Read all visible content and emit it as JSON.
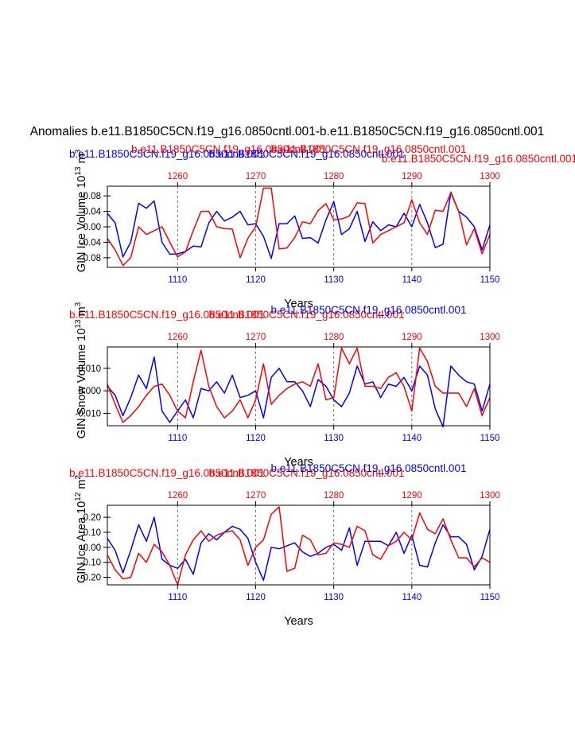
{
  "figure": {
    "title": "Anomalies b.e11.B1850C5CN.f19_g16.0850cntl.001-b.e11.B1850C5CN.f19_g16.0850cntl.001",
    "colors": {
      "case_a": "#0000ff",
      "case_b": "#ff0000",
      "axis": "#000000",
      "grid": "#555555"
    }
  },
  "chart_data": [
    {
      "type": "line",
      "ylabel": "GIN Ice Volume 10",
      "ylabel_exp": "13",
      "ylabel_unit": " m",
      "ylabel_unit_exp": "3",
      "xlabel": "Years",
      "ylim": [
        -0.105,
        0.105
      ],
      "yticks": [
        -0.08,
        -0.04,
        0.0,
        0.04,
        0.08
      ],
      "ytick_labels": [
        "-0.08",
        "-0.04",
        "0.00",
        "0.04",
        "0.08"
      ],
      "bottom_axis": {
        "range": [
          1101,
          1150
        ],
        "ticks": [
          1110,
          1120,
          1130,
          1140,
          1150
        ],
        "labels": [
          "1110",
          "1120",
          "1130",
          "1140",
          "1150"
        ]
      },
      "top_axis": {
        "range": [
          1251,
          1300
        ],
        "ticks": [
          1260,
          1270,
          1280,
          1290,
          1300
        ],
        "labels": [
          "1260",
          "1270",
          "1280",
          "1290",
          "1300"
        ]
      },
      "top_titles": [
        {
          "text": "b.e11.B1850C5CN.f19_g16.0850cntl.001",
          "color": "#0000ff",
          "anchor": "left",
          "offset": 0
        },
        {
          "text": "b.e11.B1850C5CN.f19_g16.0850cntl.001",
          "color": "#ff0000",
          "anchor": "left",
          "offset": 1
        },
        {
          "text": "b.e11.B1850C5CN.f19_g16.0850cntl.001",
          "color": "#0000ff",
          "anchor": "center",
          "offset": 0
        },
        {
          "text": "b.e11.B1850C5CN.f19_g16.0850cntl.001",
          "color": "#ff0000",
          "anchor": "center",
          "offset": 1
        },
        {
          "text": "b.e11.B1850C5CN.f19_g16.0850cntl.001",
          "color": "#ff0000",
          "anchor": "right",
          "offset": 0
        }
      ],
      "series": [
        {
          "name": "b.e11.B1850C5CN.f19_g16.0850cntl.001",
          "color": "#0000ff",
          "x_start": 1101,
          "values": [
            0.035,
            0.01,
            -0.078,
            -0.04,
            0.061,
            0.048,
            0.067,
            -0.04,
            -0.071,
            -0.07,
            -0.064,
            -0.05,
            -0.052,
            0.01,
            0.04,
            0.015,
            0.025,
            0.04,
            0.005,
            0.008,
            -0.025,
            -0.082,
            0.008,
            0.008,
            0.028,
            -0.03,
            -0.028,
            -0.042,
            0.018,
            0.065,
            -0.02,
            -0.005,
            0.04,
            -0.038,
            0.013,
            -0.01,
            0.005,
            0.0,
            0.035,
            0.0,
            0.058,
            0.01,
            -0.054,
            -0.045,
            0.09,
            0.04,
            0.025,
            0.0,
            -0.06,
            0.005
          ]
        },
        {
          "name": "b.e11.B1850C5CN.f19_g16.0850cntl.001",
          "color": "#ff0000",
          "x_start": 1251,
          "values": [
            -0.03,
            -0.06,
            -0.1,
            -0.08,
            0.0,
            -0.02,
            -0.01,
            0.0,
            -0.04,
            -0.078,
            -0.065,
            -0.01,
            0.04,
            0.04,
            0.0,
            -0.005,
            -0.006,
            -0.08,
            -0.03,
            0.0,
            0.1,
            0.1,
            -0.057,
            -0.055,
            -0.028,
            0.013,
            0.008,
            0.042,
            0.06,
            0.018,
            0.02,
            0.028,
            0.062,
            0.06,
            -0.042,
            -0.02,
            -0.01,
            0.0,
            0.01,
            0.07,
            0.01,
            -0.02,
            0.043,
            0.04,
            0.088,
            0.04,
            -0.047,
            -0.005,
            -0.07,
            -0.02
          ]
        }
      ]
    },
    {
      "type": "line",
      "ylabel": "GIN Snow Volume 10",
      "ylabel_exp": "13",
      "ylabel_unit": " m",
      "ylabel_unit_exp": "3",
      "xlabel": "Years",
      "ylim": [
        -0.0155,
        0.0195
      ],
      "yticks": [
        -0.01,
        0.0,
        0.01
      ],
      "ytick_labels": [
        "-0.010",
        "0.000",
        "0.010"
      ],
      "bottom_axis": {
        "range": [
          1101,
          1150
        ],
        "ticks": [
          1110,
          1120,
          1130,
          1140,
          1150
        ],
        "labels": [
          "1110",
          "1120",
          "1130",
          "1140",
          "1150"
        ]
      },
      "top_axis": {
        "range": [
          1251,
          1300
        ],
        "ticks": [
          1260,
          1270,
          1280,
          1290,
          1300
        ],
        "labels": [
          "1260",
          "1270",
          "1280",
          "1290",
          "1300"
        ]
      },
      "top_titles": [
        {
          "text": "b.e11.B1850C5CN.f19_g16.0850cntl.001",
          "color": "#ff0000",
          "anchor": "left",
          "offset": 0
        },
        {
          "text": "b.e11.B1850C5CN.f19_g16.0850cntl.001",
          "color": "#ff0000",
          "anchor": "center",
          "offset": 0
        },
        {
          "text": "b.e11.B1850C5CN.f19_g16.0850cntl.001",
          "color": "#0000ff",
          "anchor": "center",
          "offset": 1
        }
      ],
      "series": [
        {
          "name": "b.e11.B1850C5CN.f19_g16.0850cntl.001",
          "color": "#0000ff",
          "x_start": 1101,
          "values": [
            0.002,
            -0.002,
            -0.011,
            -0.003,
            0.007,
            0.001,
            0.015,
            -0.009,
            -0.014,
            -0.009,
            -0.004,
            -0.012,
            0.001,
            0.0,
            0.004,
            -0.001,
            0.007,
            -0.003,
            -0.002,
            0.0,
            -0.012,
            0.006,
            0.01,
            0.004,
            0.004,
            0.0,
            -0.007,
            0.005,
            0.002,
            -0.004,
            -0.007,
            -0.001,
            0.011,
            0.003,
            0.004,
            -0.003,
            0.003,
            0.002,
            0.006,
            0.0,
            0.011,
            0.007,
            -0.008,
            -0.016,
            0.011,
            0.007,
            0.004,
            0.003,
            -0.009,
            0.003
          ]
        },
        {
          "name": "b.e11.B1850C5CN.f19_g16.0850cntl.001",
          "color": "#ff0000",
          "x_start": 1251,
          "values": [
            0.003,
            -0.006,
            -0.014,
            -0.011,
            -0.007,
            -0.002,
            0.002,
            0.003,
            -0.002,
            -0.009,
            -0.012,
            0.004,
            0.018,
            0.002,
            -0.007,
            -0.012,
            -0.009,
            -0.004,
            -0.012,
            -0.004,
            0.012,
            -0.006,
            -0.002,
            0.001,
            0.003,
            0.004,
            0.002,
            0.012,
            -0.004,
            -0.003,
            0.019,
            0.012,
            0.019,
            0.002,
            0.002,
            0.001,
            0.006,
            0.008,
            0.002,
            -0.009,
            0.019,
            0.013,
            0.002,
            -0.001,
            -0.001,
            -0.001,
            -0.007,
            0.001,
            -0.011,
            -0.003
          ]
        }
      ]
    },
    {
      "type": "line",
      "ylabel": "GIN Ice Area 10",
      "ylabel_exp": "12",
      "ylabel_unit": " m",
      "ylabel_unit_exp": "2",
      "xlabel": "Years",
      "ylim": [
        -0.25,
        0.28
      ],
      "yticks": [
        -0.2,
        -0.1,
        0.0,
        0.1,
        0.2
      ],
      "ytick_labels": [
        "-0.20",
        "-0.10",
        "0.00",
        "0.10",
        "0.20"
      ],
      "bottom_axis": {
        "range": [
          1101,
          1150
        ],
        "ticks": [
          1110,
          1120,
          1130,
          1140,
          1150
        ],
        "labels": [
          "1110",
          "1120",
          "1130",
          "1140",
          "1150"
        ]
      },
      "top_axis": {
        "range": [
          1251,
          1300
        ],
        "ticks": [
          1260,
          1270,
          1280,
          1290,
          1300
        ],
        "labels": [
          "1260",
          "1270",
          "1280",
          "1290",
          "1300"
        ]
      },
      "top_titles": [
        {
          "text": "b.e11.B1850C5CN.f19_g16.0850cntl.001",
          "color": "#ff0000",
          "anchor": "left",
          "offset": 0
        },
        {
          "text": "b.e11.B1850C5CN.f19_g16.0850cntl.001",
          "color": "#ff0000",
          "anchor": "center",
          "offset": 0
        },
        {
          "text": "b.e11.B1850C5CN.f19_g16.0850cntl.001",
          "color": "#0000ff",
          "anchor": "center",
          "offset": 1
        }
      ],
      "series": [
        {
          "name": "b.e11.B1850C5CN.f19_g16.0850cntl.001",
          "color": "#0000ff",
          "x_start": 1101,
          "values": [
            0.06,
            -0.02,
            -0.17,
            -0.02,
            0.15,
            0.04,
            0.2,
            -0.08,
            -0.12,
            -0.14,
            -0.08,
            -0.18,
            0.03,
            0.09,
            0.05,
            0.1,
            0.14,
            0.12,
            0.06,
            -0.1,
            -0.22,
            0.0,
            -0.01,
            0.01,
            0.03,
            -0.03,
            -0.06,
            -0.04,
            0.0,
            0.02,
            -0.02,
            0.13,
            -0.12,
            0.04,
            0.04,
            0.04,
            0.01,
            0.1,
            -0.04,
            0.08,
            -0.12,
            -0.13,
            0.03,
            0.15,
            0.07,
            0.07,
            0.02,
            -0.15,
            -0.06,
            0.12
          ]
        },
        {
          "name": "b.e11.B1850C5CN.f19_g16.0850cntl.001",
          "color": "#ff0000",
          "x_start": 1251,
          "values": [
            -0.05,
            -0.15,
            -0.21,
            -0.2,
            -0.04,
            -0.1,
            0.02,
            -0.03,
            -0.12,
            -0.25,
            -0.05,
            0.05,
            0.11,
            0.04,
            0.08,
            0.1,
            0.11,
            0.05,
            -0.12,
            0.0,
            0.05,
            0.22,
            0.27,
            -0.16,
            -0.14,
            0.08,
            0.05,
            -0.05,
            -0.04,
            0.03,
            0.02,
            0.0,
            0.14,
            0.11,
            -0.05,
            -0.08,
            0.01,
            0.04,
            0.1,
            0.05,
            0.23,
            0.12,
            0.09,
            0.19,
            0.05,
            -0.07,
            -0.07,
            -0.13,
            -0.07,
            -0.1
          ]
        }
      ]
    }
  ]
}
